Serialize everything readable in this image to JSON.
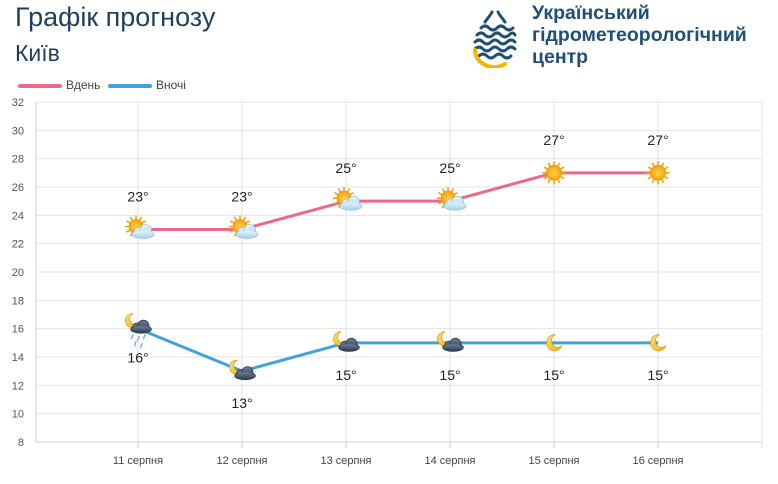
{
  "header": {
    "title": "Графік прогнозу",
    "city": "Київ",
    "org_lines": [
      "Український",
      "гідрометеорологічний",
      "центр"
    ]
  },
  "colors": {
    "day": "#ea6a88",
    "night": "#3fa3dd",
    "title": "#1f3f5f",
    "org": "#1f4f74",
    "grid": "#e3e3e3"
  },
  "chart_data": {
    "type": "line",
    "categories": [
      "11 серпня",
      "12 серпня",
      "13 серпня",
      "14 серпня",
      "15 серпня",
      "16 серпня"
    ],
    "series": [
      {
        "name": "Вдень",
        "values": [
          23,
          23,
          25,
          25,
          27,
          27
        ],
        "icons": [
          "sun-cloud",
          "sun-cloud",
          "sun-cloud",
          "sun-cloud",
          "sun",
          "sun"
        ]
      },
      {
        "name": "Вночі",
        "values": [
          16,
          13,
          15,
          15,
          15,
          15
        ],
        "icons": [
          "moon-rain-cloud",
          "moon-dark-cloud",
          "moon-dark-cloud",
          "moon-dark-cloud",
          "moon",
          "moon"
        ]
      }
    ],
    "value_labels": {
      "day": [
        "23°",
        "23°",
        "25°",
        "25°",
        "27°",
        "27°"
      ],
      "night": [
        "16°",
        "13°",
        "15°",
        "15°",
        "15°",
        "15°"
      ]
    },
    "ylim": [
      8,
      32
    ],
    "yticks": [
      "8",
      "10",
      "12",
      "14",
      "16",
      "18",
      "20",
      "22",
      "24",
      "26",
      "28",
      "30",
      "32"
    ],
    "grid": true,
    "legend": "top-left"
  }
}
